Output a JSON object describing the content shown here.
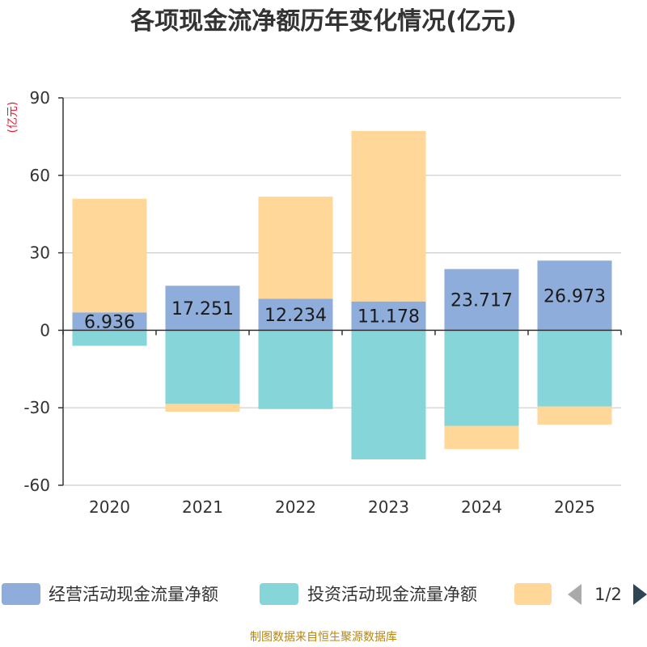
{
  "colors": {
    "operating": "#8fadda",
    "investing": "#86d5d8",
    "financing": "#ffd799",
    "grid": "#cccccc",
    "axis": "#333333",
    "unit": "#e8192c",
    "source": "#b8860b",
    "pager_disabled": "#aaaaaa",
    "pager_active": "#2f4554"
  },
  "chart_data": {
    "type": "bar",
    "stacked": true,
    "title": "各项现金流净额历年变化情况(亿元)",
    "ylabel": "(亿元)",
    "ylim": [
      -60,
      90
    ],
    "yticks": [
      -60,
      -30,
      0,
      30,
      60,
      90
    ],
    "categories": [
      "2020",
      "2021",
      "2022",
      "2023",
      "2024",
      "2025"
    ],
    "series": [
      {
        "name": "经营活动现金流量净额",
        "key": "operating",
        "values": [
          6.936,
          17.251,
          12.234,
          11.178,
          23.717,
          26.973
        ],
        "show_labels": true
      },
      {
        "name": "投资活动现金流量净额",
        "key": "investing",
        "values": [
          -6,
          -28.5,
          -30.5,
          -50,
          -37,
          -29.5
        ],
        "show_labels": false
      },
      {
        "name": "",
        "key": "financing",
        "values": [
          44,
          -3,
          39.5,
          66,
          -9,
          -7
        ],
        "show_labels": false
      }
    ],
    "legend": {
      "position": "bottom",
      "page": "1/2"
    },
    "source": "制图数据来自恒生聚源数据库"
  }
}
